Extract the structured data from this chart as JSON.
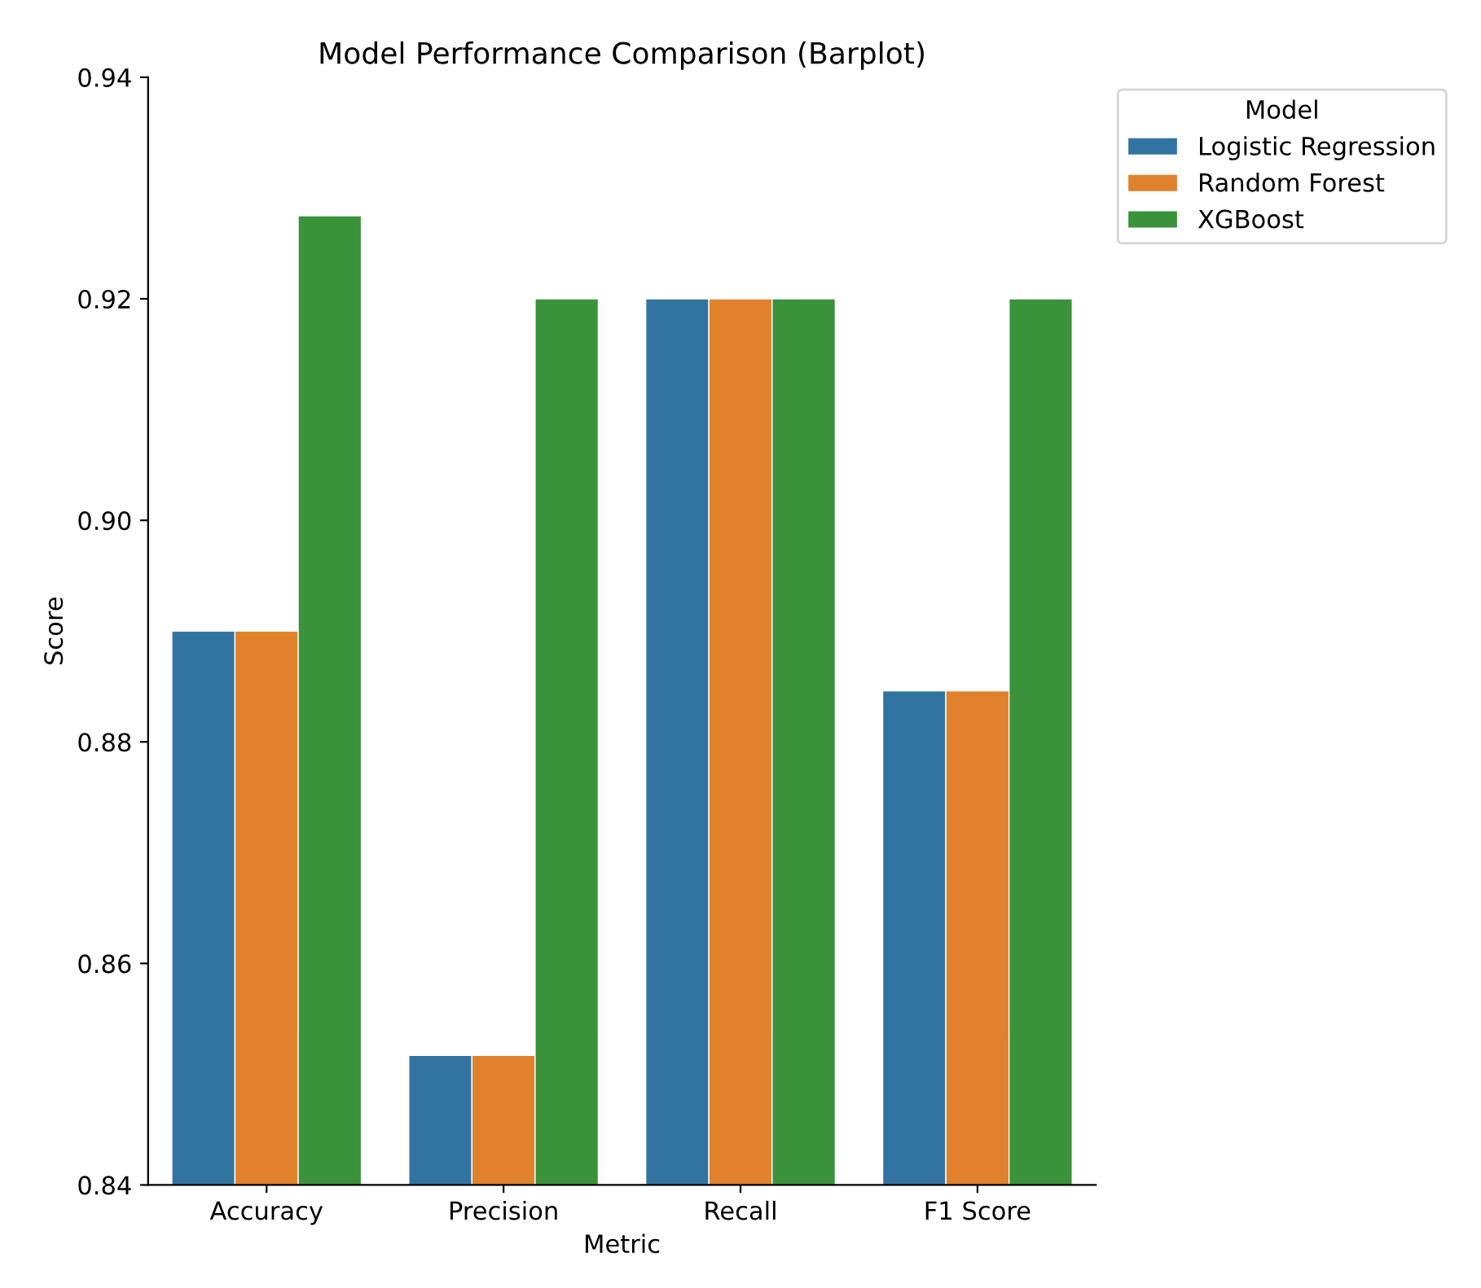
{
  "chart_data": {
    "type": "bar",
    "title": "Model Performance Comparison (Barplot)",
    "xlabel": "Metric",
    "ylabel": "Score",
    "legend_title": "Model",
    "categories": [
      "Accuracy",
      "Precision",
      "Recall",
      "F1 Score"
    ],
    "series": [
      {
        "name": "Logistic Regression",
        "color": "#3274a1",
        "values": [
          0.89,
          0.8517,
          0.92,
          0.8846
        ]
      },
      {
        "name": "Random Forest",
        "color": "#e1812c",
        "values": [
          0.89,
          0.8517,
          0.92,
          0.8846
        ]
      },
      {
        "name": "XGBoost",
        "color": "#3a923a",
        "values": [
          0.9275,
          0.92,
          0.92,
          0.92
        ]
      }
    ],
    "ylim": [
      0.84,
      0.94
    ],
    "yticks": [
      0.84,
      0.86,
      0.88,
      {
        "value": 0.9,
        "label": "0.90"
      },
      0.92,
      0.94
    ],
    "legend": "top right",
    "grid": false
  }
}
